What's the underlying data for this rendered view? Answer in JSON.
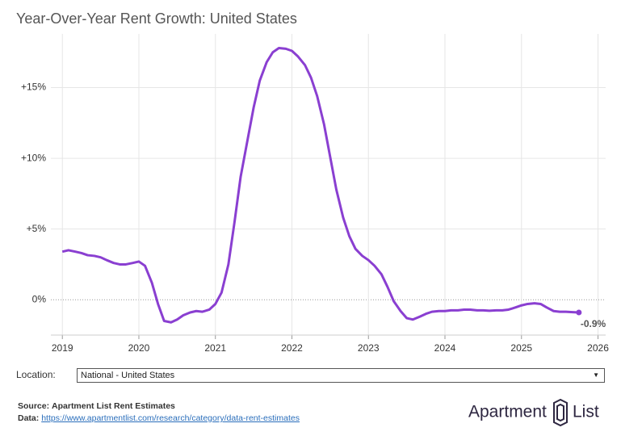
{
  "chart_data": {
    "type": "line",
    "title": "Year-Over-Year Rent Growth: United States",
    "x": [
      2019,
      2019.08,
      2019.17,
      2019.25,
      2019.33,
      2019.42,
      2019.5,
      2019.58,
      2019.67,
      2019.75,
      2019.83,
      2019.92,
      2020,
      2020.08,
      2020.17,
      2020.25,
      2020.33,
      2020.42,
      2020.5,
      2020.58,
      2020.67,
      2020.75,
      2020.83,
      2020.92,
      2021,
      2021.08,
      2021.17,
      2021.25,
      2021.33,
      2021.42,
      2021.5,
      2021.58,
      2021.67,
      2021.75,
      2021.83,
      2021.92,
      2022,
      2022.08,
      2022.17,
      2022.25,
      2022.33,
      2022.42,
      2022.5,
      2022.58,
      2022.67,
      2022.75,
      2022.83,
      2022.92,
      2023,
      2023.08,
      2023.17,
      2023.25,
      2023.33,
      2023.42,
      2023.5,
      2023.58,
      2023.67,
      2023.75,
      2023.83,
      2023.92,
      2024,
      2024.08,
      2024.17,
      2024.25,
      2024.33,
      2024.42,
      2024.5,
      2024.58,
      2024.67,
      2024.75,
      2024.83,
      2024.92,
      2025,
      2025.08,
      2025.17,
      2025.25,
      2025.33,
      2025.42,
      2025.5,
      2025.58,
      2025.67,
      2025.75
    ],
    "series": [
      {
        "name": "National - United States",
        "color": "#8a3fd1",
        "values": [
          3.4,
          3.5,
          3.4,
          3.3,
          3.15,
          3.1,
          3.0,
          2.8,
          2.6,
          2.5,
          2.5,
          2.6,
          2.7,
          2.4,
          1.2,
          -0.3,
          -1.5,
          -1.6,
          -1.4,
          -1.1,
          -0.9,
          -0.8,
          -0.85,
          -0.7,
          -0.3,
          0.5,
          2.5,
          5.5,
          8.7,
          11.3,
          13.6,
          15.5,
          16.8,
          17.5,
          17.8,
          17.75,
          17.6,
          17.2,
          16.6,
          15.7,
          14.4,
          12.4,
          10.1,
          7.8,
          5.8,
          4.5,
          3.6,
          3.1,
          2.8,
          2.4,
          1.8,
          0.9,
          -0.1,
          -0.8,
          -1.3,
          -1.4,
          -1.2,
          -1.0,
          -0.85,
          -0.8,
          -0.8,
          -0.75,
          -0.75,
          -0.7,
          -0.7,
          -0.75,
          -0.75,
          -0.78,
          -0.75,
          -0.75,
          -0.7,
          -0.55,
          -0.4,
          -0.3,
          -0.25,
          -0.3,
          -0.55,
          -0.8,
          -0.85,
          -0.85,
          -0.88,
          -0.9
        ],
        "value_labels": [
          null,
          null,
          null,
          null,
          null,
          null,
          null,
          null,
          null,
          null,
          null,
          null,
          null,
          null,
          null,
          null,
          null,
          null,
          null,
          null,
          null,
          null,
          null,
          null,
          null,
          null,
          null,
          null,
          null,
          null,
          null,
          null,
          null,
          null,
          null,
          null,
          null,
          null,
          null,
          null,
          null,
          null,
          null,
          null,
          null,
          null,
          null,
          null,
          null,
          null,
          null,
          null,
          null,
          null,
          null,
          null,
          null,
          null,
          null,
          null,
          null,
          null,
          null,
          null,
          null,
          null,
          null,
          null,
          null,
          null,
          null,
          null,
          null,
          null,
          null,
          null,
          null,
          null,
          null,
          null,
          null,
          "-0.9%"
        ]
      }
    ],
    "xlim": [
      2018.85,
      2026.1
    ],
    "xticks": [
      2019,
      2020,
      2021,
      2022,
      2023,
      2024,
      2025,
      2026
    ],
    "ylim": [
      -2.5,
      18.8
    ],
    "yticks": [
      {
        "value": 0,
        "label": "0%"
      },
      {
        "value": 5,
        "label": "+5%"
      },
      {
        "value": 10,
        "label": "+10%"
      },
      {
        "value": 15,
        "label": "+15%"
      }
    ],
    "grid": true
  },
  "controls": {
    "location_label": "Location:",
    "location_value": "National - United States"
  },
  "footer": {
    "source_label": "Source:",
    "source": "Apartment List Rent Estimates",
    "data_label": "Data:",
    "data_url": "https://www.apartmentlist.com/research/category/data-rent-estimates"
  },
  "logo": {
    "text": "Apartment",
    "text2": "List"
  }
}
